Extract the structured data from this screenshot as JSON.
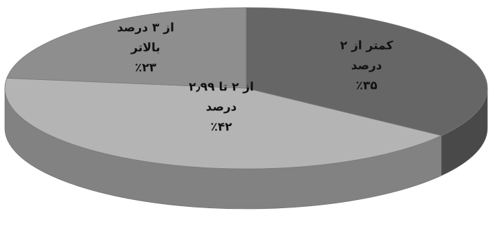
{
  "chart_data": {
    "type": "pie",
    "style": "3d-tilted",
    "title": "",
    "slices": [
      {
        "line1": "کمتر از ۲",
        "line2": "درصد",
        "percent_text": "٪۳۵",
        "value": 35,
        "color": "#666666"
      },
      {
        "line1": "از ۲ تا ۲٫۹۹",
        "line2": "درصد",
        "percent_text": "٪۴۲",
        "value": 42,
        "color": "#b4b4b4"
      },
      {
        "line1": "از ۳ درصد",
        "line2": "بالاتر",
        "percent_text": "٪۲۳",
        "value": 23,
        "color": "#8e8e8e"
      }
    ],
    "legend": "none",
    "labels_placement": "inside-slices"
  }
}
